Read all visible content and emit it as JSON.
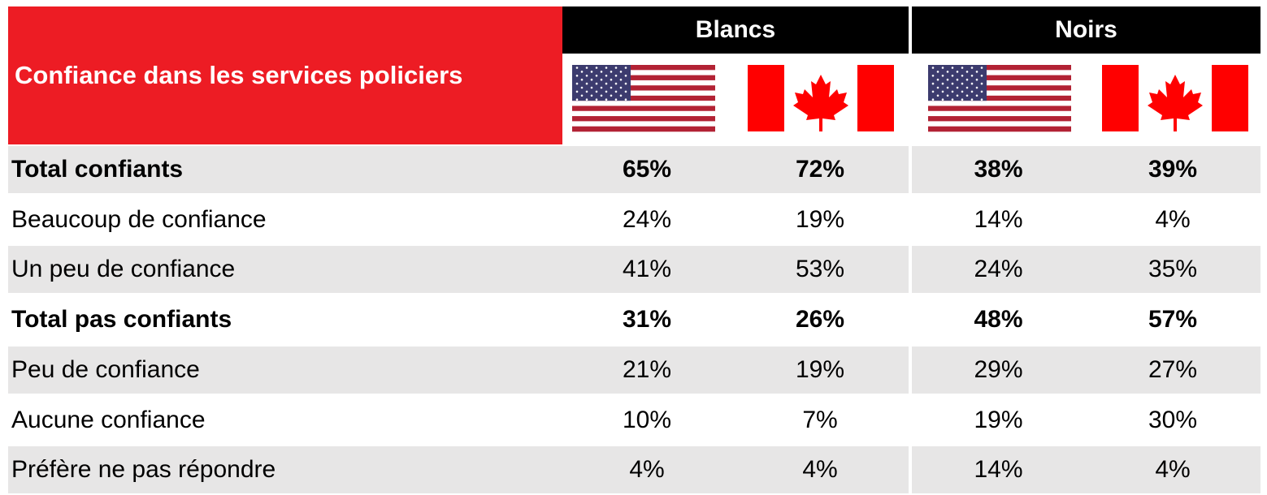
{
  "header": {
    "title": "Confiance dans les services policiers",
    "groups": [
      "Blancs",
      "Noirs"
    ]
  },
  "table": {
    "rows": [
      {
        "label": "Total confiants",
        "bold": true,
        "cells": [
          "65%",
          "72%",
          "38%",
          "39%"
        ]
      },
      {
        "label": "Beaucoup de confiance",
        "bold": false,
        "cells": [
          "24%",
          "19%",
          "14%",
          "4%"
        ]
      },
      {
        "label": "Un peu de confiance",
        "bold": false,
        "cells": [
          "41%",
          "53%",
          "24%",
          "35%"
        ]
      },
      {
        "label": "Total pas confiants",
        "bold": true,
        "cells": [
          "31%",
          "26%",
          "48%",
          "57%"
        ]
      },
      {
        "label": "Peu de confiance",
        "bold": false,
        "cells": [
          "21%",
          "19%",
          "29%",
          "27%"
        ]
      },
      {
        "label": "Aucune confiance",
        "bold": false,
        "cells": [
          "10%",
          "7%",
          "19%",
          "30%"
        ]
      },
      {
        "label": "Préfère ne pas répondre",
        "bold": false,
        "cells": [
          "4%",
          "4%",
          "14%",
          "4%"
        ]
      }
    ]
  }
}
